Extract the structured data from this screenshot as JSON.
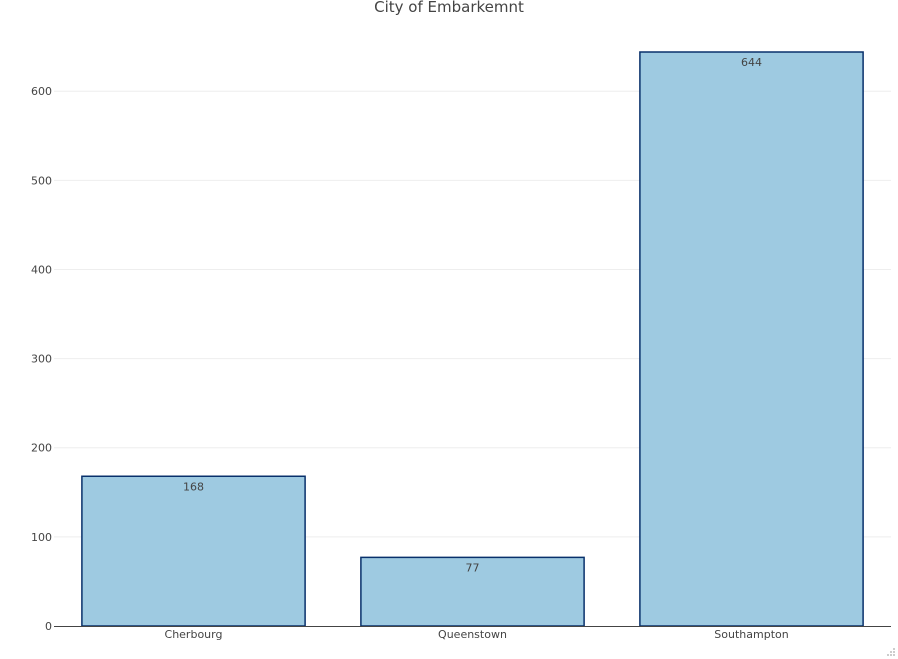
{
  "chart_data": {
    "type": "bar",
    "title": "City of Embarkemnt",
    "xlabel": "",
    "ylabel": "",
    "categories": [
      "Cherbourg",
      "Queenstown",
      "Southampton"
    ],
    "values": [
      168,
      77,
      644
    ],
    "data_labels": [
      "168",
      "77",
      "644"
    ],
    "ylim": [
      0,
      644
    ],
    "yticks": [
      0,
      100,
      200,
      300,
      400,
      500,
      600
    ],
    "ytick_labels": [
      "0",
      "100",
      "200",
      "300",
      "400",
      "500",
      "600"
    ],
    "grid": true,
    "legend": "none",
    "bar_fill": "#9ecae1",
    "bar_outline": "#08306b"
  }
}
